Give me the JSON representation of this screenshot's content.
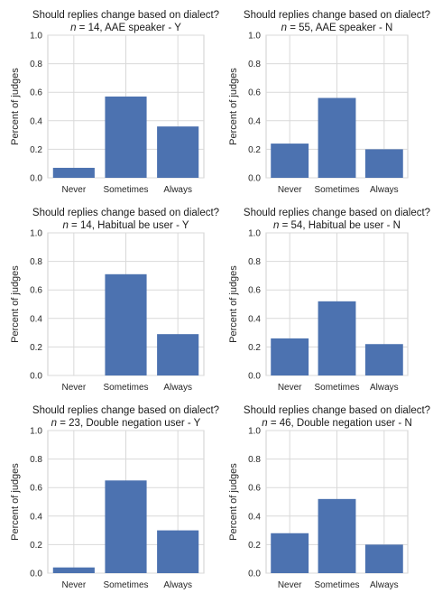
{
  "figure": {
    "background": "#ffffff",
    "bar_color": "#4c72b0",
    "grid_color": "#d9d9d9"
  },
  "chart_data": [
    {
      "type": "bar",
      "title": "Should replies change based on dialect?",
      "subtitle_n": "n",
      "subtitle_rest": " = 14, AAE speaker - Y",
      "categories": [
        "Never",
        "Sometimes",
        "Always"
      ],
      "values": [
        0.07,
        0.57,
        0.36
      ],
      "ylabel": "Percent of judges",
      "ylim": [
        0,
        1.0
      ],
      "yticks": [
        "0.0",
        "0.2",
        "0.4",
        "0.6",
        "0.8",
        "1.0"
      ],
      "grid": true
    },
    {
      "type": "bar",
      "title": "Should replies change based on dialect?",
      "subtitle_n": "n",
      "subtitle_rest": " = 55, AAE speaker - N",
      "categories": [
        "Never",
        "Sometimes",
        "Always"
      ],
      "values": [
        0.24,
        0.56,
        0.2
      ],
      "ylabel": "Percent of judges",
      "ylim": [
        0,
        1.0
      ],
      "yticks": [
        "0.0",
        "0.2",
        "0.4",
        "0.6",
        "0.8",
        "1.0"
      ],
      "grid": true
    },
    {
      "type": "bar",
      "title": "Should replies change based on dialect?",
      "subtitle_n": "n",
      "subtitle_rest": " = 14, Habitual be user - Y",
      "categories": [
        "Never",
        "Sometimes",
        "Always"
      ],
      "values": [
        0.0,
        0.71,
        0.29
      ],
      "ylabel": "Percent of judges",
      "ylim": [
        0,
        1.0
      ],
      "yticks": [
        "0.0",
        "0.2",
        "0.4",
        "0.6",
        "0.8",
        "1.0"
      ],
      "grid": true
    },
    {
      "type": "bar",
      "title": "Should replies change based on dialect?",
      "subtitle_n": "n",
      "subtitle_rest": " = 54, Habitual be user - N",
      "categories": [
        "Never",
        "Sometimes",
        "Always"
      ],
      "values": [
        0.26,
        0.52,
        0.22
      ],
      "ylabel": "Percent of judges",
      "ylim": [
        0,
        1.0
      ],
      "yticks": [
        "0.0",
        "0.2",
        "0.4",
        "0.6",
        "0.8",
        "1.0"
      ],
      "grid": true
    },
    {
      "type": "bar",
      "title": "Should replies change based on dialect?",
      "subtitle_n": "n",
      "subtitle_rest": " = 23, Double negation user - Y",
      "categories": [
        "Never",
        "Sometimes",
        "Always"
      ],
      "values": [
        0.04,
        0.65,
        0.3
      ],
      "ylabel": "Percent of judges",
      "ylim": [
        0,
        1.0
      ],
      "yticks": [
        "0.0",
        "0.2",
        "0.4",
        "0.6",
        "0.8",
        "1.0"
      ],
      "grid": true
    },
    {
      "type": "bar",
      "title": "Should replies change based on dialect?",
      "subtitle_n": "n",
      "subtitle_rest": " = 46, Double negation user - N",
      "categories": [
        "Never",
        "Sometimes",
        "Always"
      ],
      "values": [
        0.28,
        0.52,
        0.2
      ],
      "ylabel": "Percent of judges",
      "ylim": [
        0,
        1.0
      ],
      "yticks": [
        "0.0",
        "0.2",
        "0.4",
        "0.6",
        "0.8",
        "1.0"
      ],
      "grid": true
    }
  ]
}
